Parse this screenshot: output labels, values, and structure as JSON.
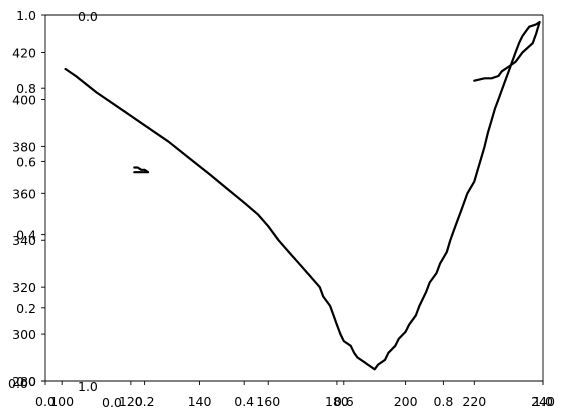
{
  "chart_data": [
    {
      "type": "line",
      "title": "",
      "xlabel": "",
      "ylabel": "",
      "x_ticks": [
        100,
        120,
        140,
        160,
        180,
        200,
        220,
        240
      ],
      "xlim": [
        95,
        240
      ],
      "y_ticks": [
        280,
        300,
        320,
        340,
        360,
        380,
        400,
        420
      ],
      "ylim": [
        280,
        436
      ],
      "series": [
        {
          "x": [
            101,
            104,
            110,
            117,
            124,
            131,
            137,
            143,
            148,
            153,
            157,
            160,
            163,
            166,
            169,
            172,
            175,
            176,
            178,
            179,
            180,
            181,
            182,
            184,
            185,
            186,
            188,
            189,
            191,
            192,
            194,
            195,
            197,
            198,
            200,
            201,
            203,
            204,
            205,
            206,
            207,
            209,
            210,
            212,
            213,
            214,
            215,
            216,
            217,
            218,
            220,
            221,
            222,
            223,
            224,
            225,
            226,
            227,
            228,
            229,
            230,
            231,
            232,
            233,
            234,
            235,
            236,
            238,
            239,
            238,
            237,
            234,
            233,
            232,
            230,
            228,
            227,
            225,
            223,
            220,
            121,
            122,
            123,
            124,
            125,
            124,
            123,
            122,
            121
          ],
          "y": [
            413,
            410,
            403,
            396,
            389,
            382,
            375,
            368,
            362,
            356,
            351,
            346,
            340,
            335,
            330,
            325,
            320,
            316,
            312,
            308,
            304,
            300,
            297,
            295,
            292,
            290,
            288,
            287,
            285,
            287,
            289,
            292,
            295,
            298,
            301,
            304,
            308,
            312,
            315,
            318,
            322,
            326,
            330,
            335,
            340,
            344,
            348,
            352,
            356,
            360,
            365,
            370,
            375,
            380,
            386,
            391,
            396,
            400,
            404,
            408,
            412,
            416,
            420,
            424,
            427,
            429,
            431,
            432,
            433,
            428,
            424,
            420,
            418,
            416,
            414,
            412,
            410,
            409,
            409,
            408,
            371,
            371,
            370,
            370,
            369,
            369,
            369,
            369,
            369
          ]
        }
      ],
      "line_color": "#000000",
      "grid": false
    },
    {
      "type": "line",
      "xlim": [
        0,
        1
      ],
      "ylim": [
        0,
        1
      ],
      "x_ticks": [
        "0.0",
        "0.2",
        "0.4",
        "0.6",
        "0.8",
        "1.0"
      ],
      "y_ticks": [
        "0.0",
        "0.2",
        "0.4",
        "0.6",
        "0.8",
        "1.0"
      ],
      "grid": false
    }
  ],
  "stray_labels": [
    "0.0",
    "0.0",
    "1.0",
    "0.0"
  ]
}
